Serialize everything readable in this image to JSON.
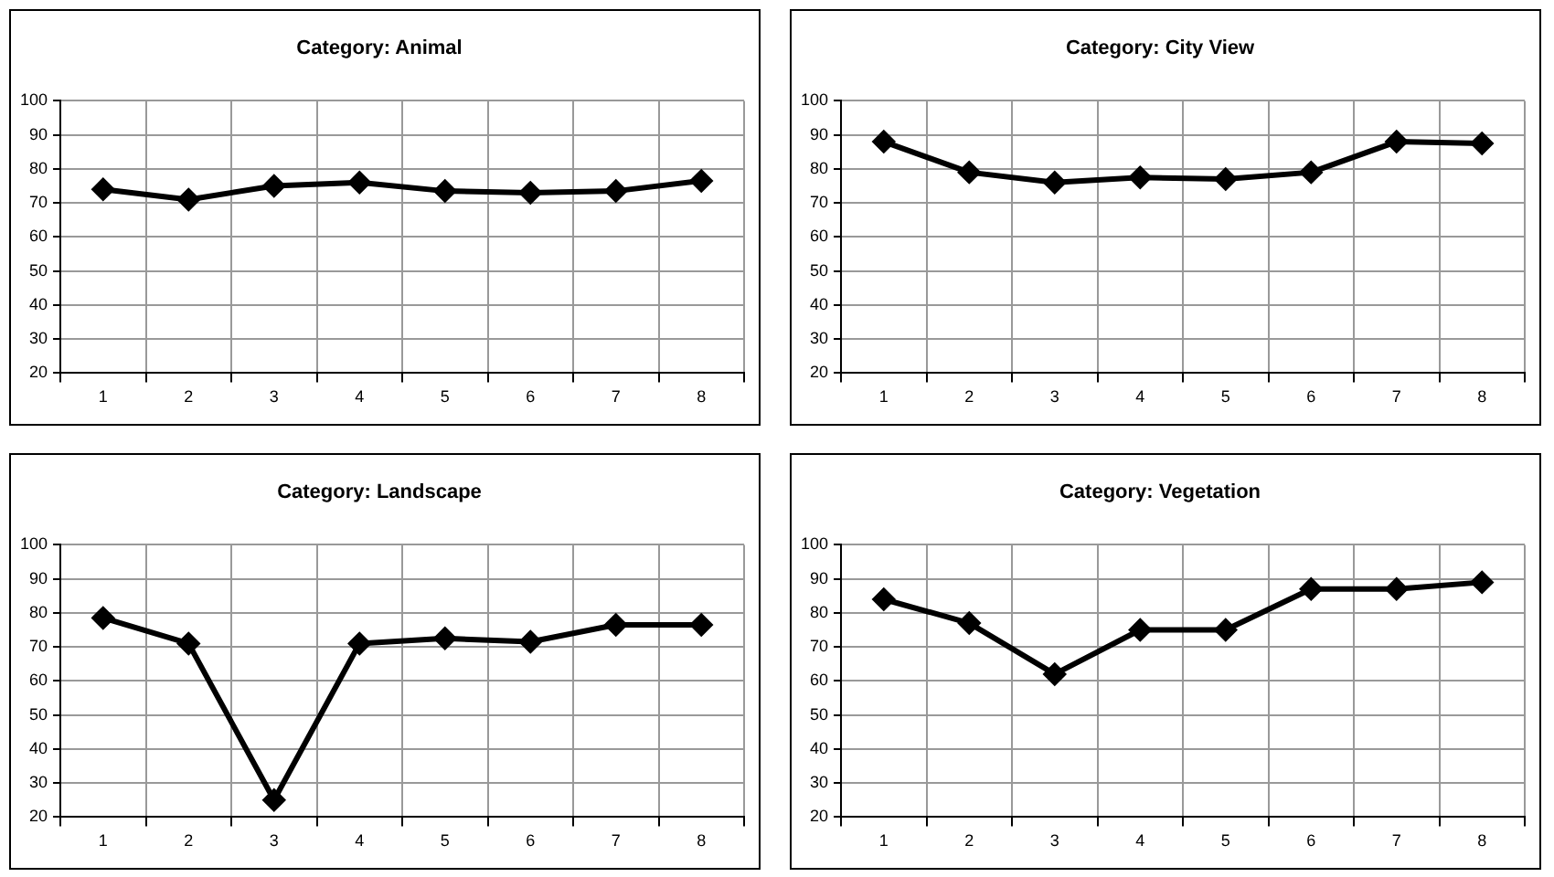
{
  "chart_data": [
    {
      "type": "line",
      "title": "Category: Animal",
      "categories": [
        "1",
        "2",
        "3",
        "4",
        "5",
        "6",
        "7",
        "8"
      ],
      "values": [
        74,
        71,
        75,
        76,
        73.5,
        73,
        73.5,
        76.5
      ],
      "color": "#000000",
      "ylim": [
        20,
        100
      ],
      "yticks": [
        20,
        30,
        40,
        50,
        60,
        70,
        80,
        90,
        100
      ],
      "grid": true,
      "marker": "diamond",
      "legend": false
    },
    {
      "type": "line",
      "title": "Category: City View",
      "categories": [
        "1",
        "2",
        "3",
        "4",
        "5",
        "6",
        "7",
        "8"
      ],
      "values": [
        88,
        79,
        76,
        77.5,
        77,
        79,
        88,
        87.5
      ],
      "color": "#000000",
      "ylim": [
        20,
        100
      ],
      "yticks": [
        20,
        30,
        40,
        50,
        60,
        70,
        80,
        90,
        100
      ],
      "grid": true,
      "marker": "diamond",
      "legend": false
    },
    {
      "type": "line",
      "title": "Category: Landscape",
      "categories": [
        "1",
        "2",
        "3",
        "4",
        "5",
        "6",
        "7",
        "8"
      ],
      "values": [
        78.5,
        71,
        25,
        71,
        72.5,
        71.5,
        76.5,
        76.5
      ],
      "color": "#000000",
      "ylim": [
        20,
        100
      ],
      "yticks": [
        20,
        30,
        40,
        50,
        60,
        70,
        80,
        90,
        100
      ],
      "grid": true,
      "marker": "diamond",
      "legend": false
    },
    {
      "type": "line",
      "title": "Category: Vegetation",
      "categories": [
        "1",
        "2",
        "3",
        "4",
        "5",
        "6",
        "7",
        "8"
      ],
      "values": [
        84,
        77,
        62,
        75,
        75,
        87,
        87,
        89
      ],
      "color": "#000000",
      "ylim": [
        20,
        100
      ],
      "yticks": [
        20,
        30,
        40,
        50,
        60,
        70,
        80,
        90,
        100
      ],
      "grid": true,
      "marker": "diamond",
      "legend": false
    }
  ]
}
